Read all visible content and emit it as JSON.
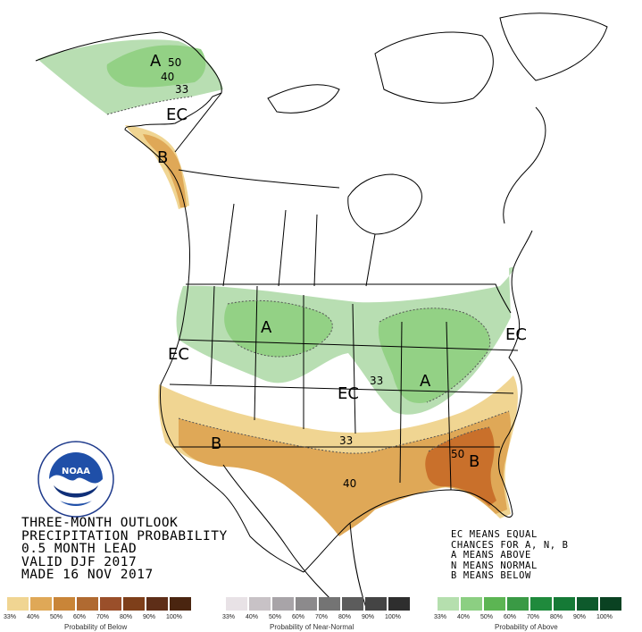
{
  "title_lines": [
    "THREE-MONTH OUTLOOK",
    "PRECIPITATION PROBABILITY",
    "0.5 MONTH LEAD",
    "VALID DJF 2017",
    "MADE 16 NOV 2017"
  ],
  "notes": [
    "EC MEANS EQUAL",
    "CHANCES FOR A, N, B",
    "A MEANS ABOVE",
    "N MEANS NORMAL",
    "B MEANS BELOW"
  ],
  "map_labels": {
    "alaska_a": "A",
    "alaska_50": "50",
    "alaska_40": "40",
    "alaska_33": "33",
    "canada_ec": "EC",
    "pnw_b": "B",
    "west_ec": "EC",
    "north_a": "A",
    "ohio_a": "A",
    "central_ec": "EC",
    "central_33": "33",
    "northeast_ec": "EC",
    "sw_b": "B",
    "gulf_40": "40",
    "se_50": "50",
    "se_b": "B",
    "sw_33": "33"
  },
  "noaa_logo_text": "NOAA",
  "scales": {
    "below": {
      "title": "Probability of Below",
      "ticks": [
        "33%",
        "40%",
        "50%",
        "60%",
        "70%",
        "80%",
        "90%",
        "100%"
      ],
      "colors": [
        "#f0d592",
        "#dfa857",
        "#c98538",
        "#b06a31",
        "#9a4f2a",
        "#7e3f1a",
        "#5e2e18",
        "#4a2510"
      ]
    },
    "normal": {
      "title": "Probability of Near-Normal",
      "ticks": [
        "33%",
        "40%",
        "50%",
        "60%",
        "70%",
        "80%",
        "90%",
        "100%"
      ],
      "colors": [
        "#e8e2e6",
        "#c8c2c6",
        "#a8a4a8",
        "#8c8a8c",
        "#747474",
        "#5c5c5c",
        "#444444",
        "#2e2e2e"
      ]
    },
    "above": {
      "title": "Probability of Above",
      "ticks": [
        "33%",
        "40%",
        "50%",
        "60%",
        "70%",
        "80%",
        "90%",
        "100%"
      ],
      "colors": [
        "#b5dfae",
        "#8ccf82",
        "#5cb553",
        "#3a9a45",
        "#1f8a3c",
        "#157a36",
        "#0e5a2c",
        "#0a4222"
      ]
    }
  },
  "colors": {
    "green_33": "#b8deb2",
    "green_40": "#93d185",
    "tan_33": "#f0d592",
    "tan_40": "#dfa857",
    "brown_50": "#c9702b"
  }
}
